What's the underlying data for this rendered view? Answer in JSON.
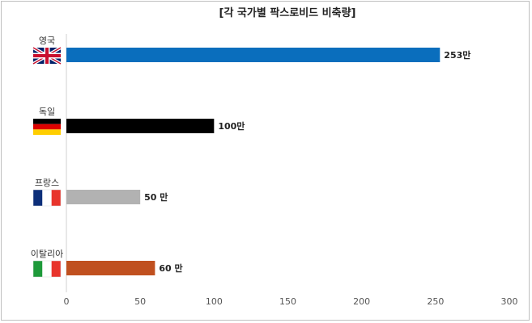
{
  "chart_data": {
    "type": "bar",
    "orientation": "horizontal",
    "title": "[각 국가별 팍스로비드 비축량]",
    "categories": [
      "영국",
      "독일",
      "프랑스",
      "이탈리아"
    ],
    "values": [
      253,
      100,
      50,
      60
    ],
    "data_labels": [
      "253만",
      "100만",
      "50 만",
      "60 만"
    ],
    "bar_colors": [
      "#0a6ebd",
      "#000000",
      "#b2b2b2",
      "#c0501f"
    ],
    "flag_icons": [
      "uk-flag-icon",
      "germany-flag-icon",
      "france-flag-icon",
      "italy-flag-icon"
    ],
    "xlim": [
      0,
      300
    ],
    "xticks": [
      0,
      50,
      100,
      150,
      200,
      250,
      300
    ],
    "xlabel": "",
    "ylabel": "",
    "grid": false,
    "legend": "none"
  }
}
